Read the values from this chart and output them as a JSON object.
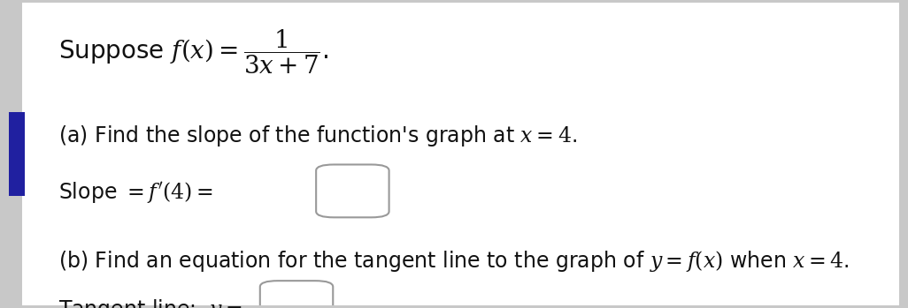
{
  "bg_color": "#c8c8c8",
  "content_bg": "#ffffff",
  "left_bar_color": "#2020a0",
  "left_tab_color": "#2020a0",
  "title_text": "Suppose $f(x) = \\dfrac{1}{3x+7}$.",
  "part_a_line1": "(a) Find the slope of the function's graph at $x = 4$.",
  "part_a_line2": "Slope $= f'(4) =$",
  "part_b_line1": "(b) Find an equation for the tangent line to the graph of $y = f(x)$ when $x = 4$.",
  "part_b_line2": "Tangent line:  $y =$",
  "font_size_title": 20,
  "font_size_body": 17,
  "text_color": "#111111"
}
